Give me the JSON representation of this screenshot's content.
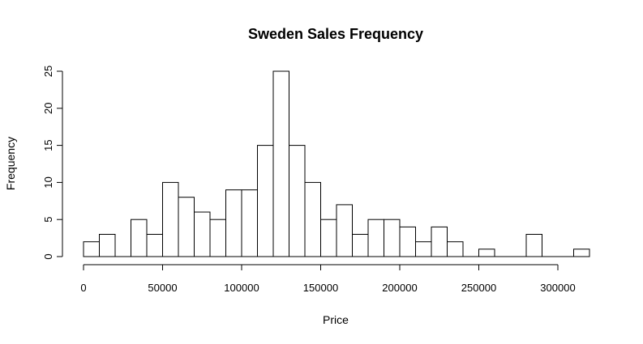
{
  "chart_data": {
    "type": "bar",
    "title": "Sweden Sales Frequency",
    "xlabel": "Price",
    "ylabel": "Frequency",
    "bin_width": 10000,
    "bin_starts": [
      0,
      10000,
      20000,
      30000,
      40000,
      50000,
      60000,
      70000,
      80000,
      90000,
      100000,
      110000,
      120000,
      130000,
      140000,
      150000,
      160000,
      170000,
      180000,
      190000,
      200000,
      210000,
      220000,
      230000,
      240000,
      250000,
      260000,
      270000,
      280000,
      290000,
      300000,
      310000
    ],
    "values": [
      2,
      3,
      0,
      5,
      3,
      10,
      8,
      6,
      5,
      9,
      9,
      15,
      25,
      15,
      10,
      5,
      7,
      3,
      5,
      5,
      4,
      2,
      4,
      2,
      0,
      1,
      0,
      0,
      3,
      0,
      0,
      1
    ],
    "xlim": [
      0,
      320000
    ],
    "ylim": [
      0,
      25
    ],
    "x_ticks": [
      "0",
      "50000",
      "100000",
      "150000",
      "200000",
      "250000",
      "300000"
    ],
    "x_tick_values": [
      0,
      50000,
      100000,
      150000,
      200000,
      250000,
      300000
    ],
    "y_ticks": [
      "0",
      "5",
      "10",
      "15",
      "20",
      "25"
    ],
    "y_tick_values": [
      0,
      5,
      10,
      15,
      20,
      25
    ],
    "grid": false,
    "bar_fill": "#ffffff",
    "bar_stroke": "#000000"
  }
}
